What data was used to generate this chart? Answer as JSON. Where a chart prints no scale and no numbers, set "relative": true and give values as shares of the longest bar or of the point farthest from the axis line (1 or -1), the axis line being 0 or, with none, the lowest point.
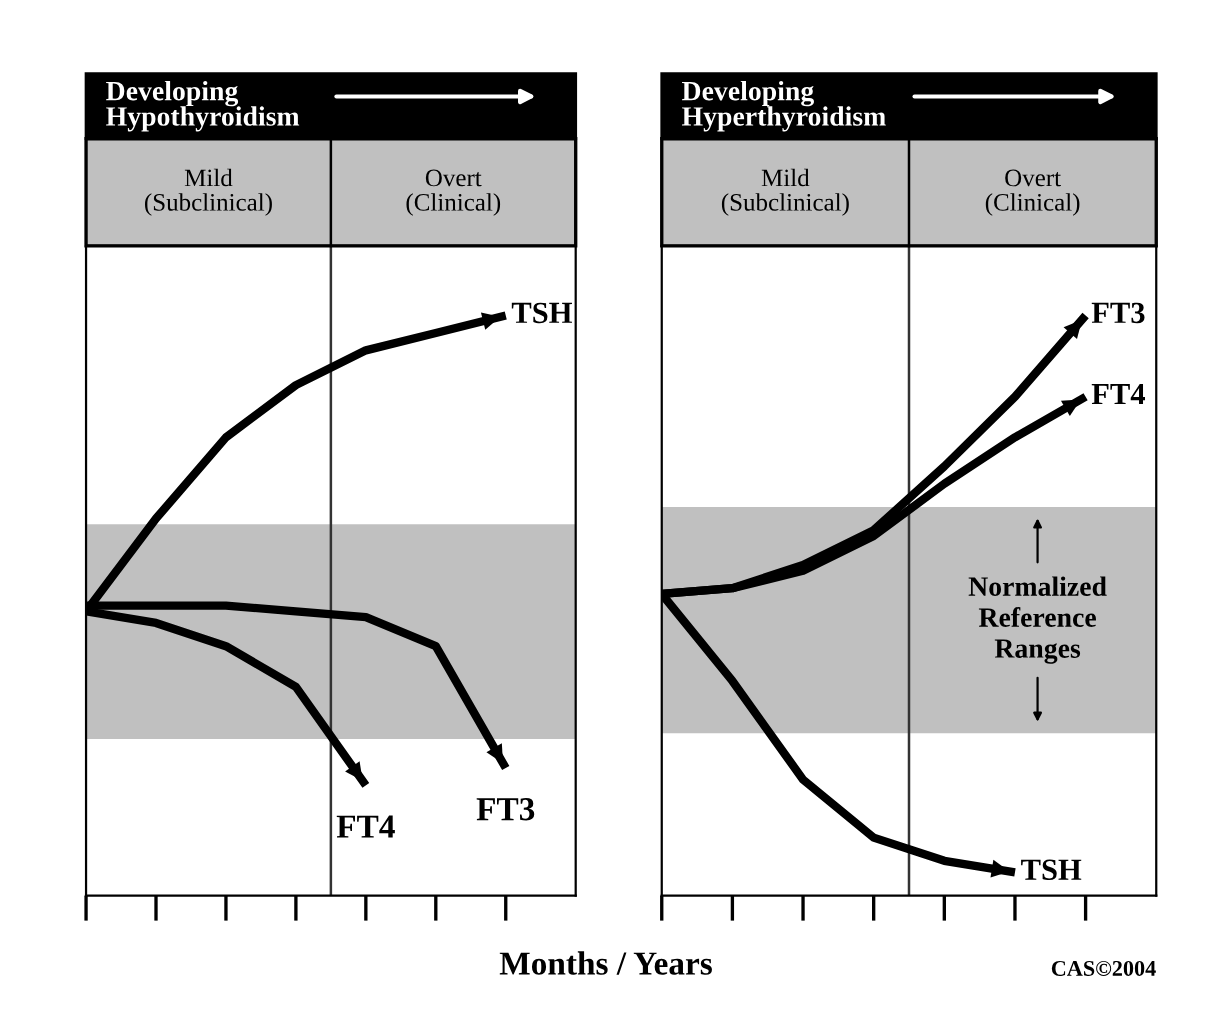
{
  "chart_data": [
    {
      "type": "line",
      "title": "Developing\nHypothyroidism",
      "xlabel": "Months / Years",
      "relative": true,
      "categories": [
        null,
        null,
        null,
        null,
        null,
        null,
        null
      ],
      "annotations": [
        "Mild\n(Subclinical)",
        "Overt\n(Clinical)"
      ],
      "bands": [
        {
          "axis": "y",
          "from": 0.27,
          "to": 0.64,
          "color": "#c0c0c0"
        }
      ],
      "legend": "bottom right",
      "marker": "none",
      "line_style": "solid",
      "series": [
        {
          "name": "TSH",
          "color": "#000000",
          "values": [
            0.49,
            0.65,
            0.79,
            0.88,
            0.94,
            0.97,
            1.0
          ]
        },
        {
          "name": "FT3",
          "color": "#000000",
          "values": [
            0.5,
            0.5,
            0.5,
            0.49,
            0.48,
            0.43,
            0.22
          ]
        },
        {
          "name": "FT4",
          "color": "#000000",
          "values": [
            0.49,
            0.47,
            0.43,
            0.36,
            0.19,
            null,
            null
          ]
        }
      ]
    },
    {
      "type": "line",
      "title": "Developing\nHyperthyroidism",
      "relative": true,
      "categories": [
        null,
        null,
        null,
        null,
        null,
        null,
        null
      ],
      "annotations": [
        "Mild\n(Subclinical)",
        "Overt\n(Clinical)",
        "CAS©2004"
      ],
      "bands": [
        {
          "axis": "y",
          "from": 0.28,
          "to": 0.67,
          "color": "#c0c0c0",
          "label": "Normalized\nReference\nRanges"
        }
      ],
      "legend": "right",
      "marker": "none",
      "line_style": "solid",
      "series": [
        {
          "name": "FT3",
          "color": "#000000",
          "values": [
            0.52,
            0.53,
            0.57,
            0.63,
            0.74,
            0.86,
            1.0
          ]
        },
        {
          "name": "FT4",
          "color": "#000000",
          "values": [
            0.52,
            0.53,
            0.56,
            0.62,
            0.71,
            0.79,
            0.86
          ]
        },
        {
          "name": "TSH",
          "color": "#000000",
          "values": [
            0.52,
            0.37,
            0.2,
            0.1,
            0.06,
            0.04,
            null
          ]
        }
      ]
    }
  ]
}
